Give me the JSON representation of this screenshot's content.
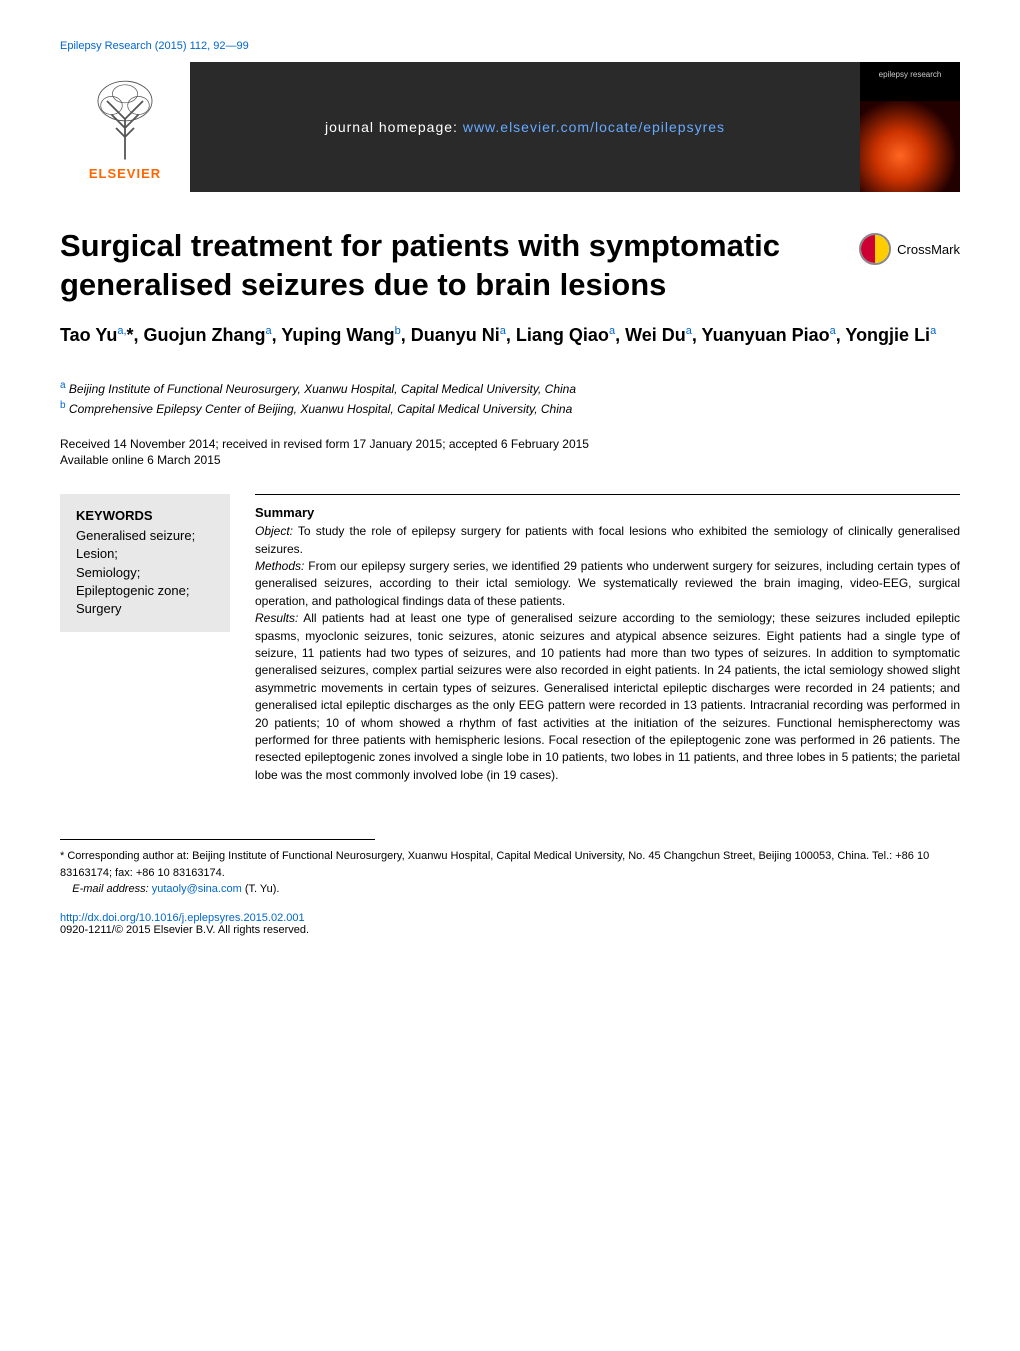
{
  "citation": "Epilepsy Research (2015) 112, 92—99",
  "banner_homepage_label": "journal homepage: ",
  "banner_homepage_url": "www.elsevier.com/locate/epilepsyres",
  "elsevier_label": "ELSEVIER",
  "journal_cover_title": "epilepsy research",
  "crossmark_label": "CrossMark",
  "title": "Surgical treatment for patients with symptomatic generalised seizures due to brain lesions",
  "authors_html": "Tao Yu<sup>a,</sup>*, Guojun Zhang<sup>a</sup>, Yuping Wang<sup>b</sup>, Duanyu Ni<sup>a</sup>, Liang Qiao<sup>a</sup>, Wei Du<sup>a</sup>, Yuanyuan Piao<sup>a</sup>, Yongjie Li<sup>a</sup>",
  "affiliations": [
    {
      "sup": "a",
      "text": "Beijing Institute of Functional Neurosurgery, Xuanwu Hospital, Capital Medical University, China"
    },
    {
      "sup": "b",
      "text": "Comprehensive Epilepsy Center of Beijing, Xuanwu Hospital, Capital Medical University, China"
    }
  ],
  "dates_line1": "Received 14 November 2014; received in revised form 17 January 2015; accepted 6 February 2015",
  "dates_line2": "Available online 6 March 2015",
  "keywords_title": "KEYWORDS",
  "keywords": [
    "Generalised seizure;",
    "Lesion;",
    "Semiology;",
    "Epileptogenic zone;",
    "Surgery"
  ],
  "summary_title": "Summary",
  "summary_sections": {
    "object_label": "Object:",
    "object_text": " To study the role of epilepsy surgery for patients with focal lesions who exhibited the semiology of clinically generalised seizures.",
    "methods_label": "Methods:",
    "methods_text": " From our epilepsy surgery series, we identified 29 patients who underwent surgery for seizures, including certain types of generalised seizures, according to their ictal semiology. We systematically reviewed the brain imaging, video-EEG, surgical operation, and pathological findings data of these patients.",
    "results_label": "Results:",
    "results_text": " All patients had at least one type of generalised seizure according to the semiology; these seizures included epileptic spasms, myoclonic seizures, tonic seizures, atonic seizures and atypical absence seizures. Eight patients had a single type of seizure, 11 patients had two types of seizures, and 10 patients had more than two types of seizures. In addition to symptomatic generalised seizures, complex partial seizures were also recorded in eight patients. In 24 patients, the ictal semiology showed slight asymmetric movements in certain types of seizures. Generalised interictal epileptic discharges were recorded in 24 patients; and generalised ictal epileptic discharges as the only EEG pattern were recorded in 13 patients. Intracranial recording was performed in 20 patients; 10 of whom showed a rhythm of fast activities at the initiation of the seizures. Functional hemispherectomy was performed for three patients with hemispheric lesions. Focal resection of the epileptogenic zone was performed in 26 patients. The resected epileptogenic zones involved a single lobe in 10 patients, two lobes in 11 patients, and three lobes in 5 patients; the parietal lobe was the most commonly involved lobe (in 19 cases)."
  },
  "footer": {
    "corresponding": "* Corresponding author at: Beijing Institute of Functional Neurosurgery, Xuanwu Hospital, Capital Medical University, No. 45 Changchun Street, Beijing 100053, China. Tel.: +86 10 83163174; fax: +86 10 83163174.",
    "email_label": "E-mail address:",
    "email": "yutaoly@sina.com",
    "email_author": "(T. Yu).",
    "doi": "http://dx.doi.org/10.1016/j.eplepsyres.2015.02.001",
    "copyright": "0920-1211/© 2015 Elsevier B.V. All rights reserved."
  },
  "colors": {
    "link_color": "#0066cc",
    "banner_bg": "#2a2a2a",
    "elsevier_orange": "#ff6600",
    "keywords_bg": "#e8e8e8"
  }
}
